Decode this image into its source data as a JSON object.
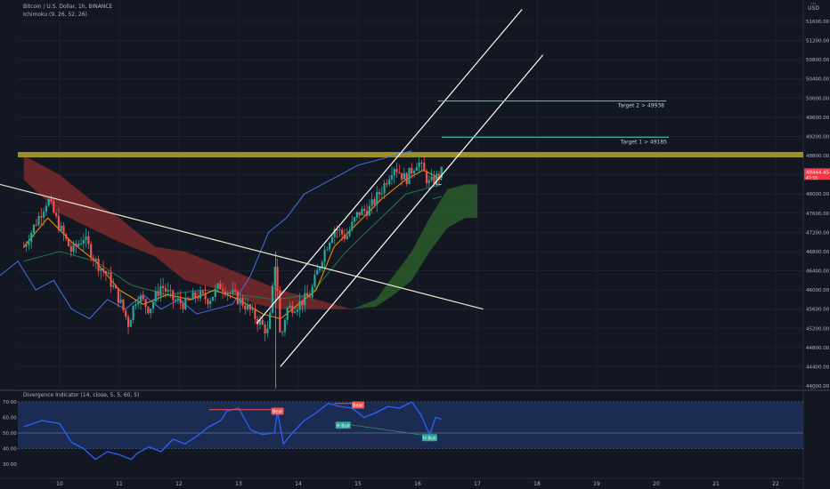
{
  "header": {
    "symbol": "Bitcoin / U.S. Dollar, 1h, BINANCE",
    "ichimoku": "Ichimoku (9, 26, 52, 26)",
    "divergence": "Divergence Indicator (14, close, 5, 5, 60, 5)",
    "currency": "USD"
  },
  "colors": {
    "background": "#131722",
    "grid": "#1e2230",
    "up_candle": "#26a69a",
    "down_candle": "#ef5350",
    "horizontal_level": "#9d9124",
    "target_lines": "#4dd0c4",
    "conversion_line": "#ff9800",
    "lagging_span": "#4372e6",
    "cloud_bearish": "#7a2a2a",
    "cloud_bullish": "#2a5c2a",
    "base_line": "#1f7a48",
    "oscillator": "#2962ff",
    "osc_band": "#1c2b52",
    "price_label": "#f23645"
  },
  "chart_data": [
    {
      "type": "candlestick",
      "title": "Bitcoin / U.S. Dollar, 1h, BINANCE",
      "x_ticks": [
        "10",
        "11",
        "12",
        "13",
        "14",
        "15",
        "16",
        "17",
        "18",
        "19",
        "20",
        "21",
        "22"
      ],
      "y_ticks": [
        "44000.00",
        "44400.00",
        "44800.00",
        "45200.00",
        "45600.00",
        "46000.00",
        "46400.00",
        "46800.00",
        "47200.00",
        "47600.00",
        "48000.00",
        "48400.00",
        "48800.00",
        "49200.00",
        "49600.00",
        "50000.00",
        "50400.00",
        "50800.00",
        "51200.00",
        "51600.00"
      ],
      "ylim": [
        43950,
        51750
      ],
      "last_price": "48444.45",
      "last_price_sub": "47:55",
      "horizontal_level": 48820,
      "annotations": [
        {
          "text": "Target 2 > 49938",
          "value": 49938
        },
        {
          "text": "Target 1 > 49185",
          "value": 49185
        }
      ],
      "price_path": [
        [
          9.4,
          46900
        ],
        [
          9.6,
          47400
        ],
        [
          9.8,
          47900
        ],
        [
          10.0,
          47300
        ],
        [
          10.2,
          46800
        ],
        [
          10.4,
          47100
        ],
        [
          10.6,
          46600
        ],
        [
          10.8,
          46300
        ],
        [
          11.0,
          45800
        ],
        [
          11.15,
          45300
        ],
        [
          11.3,
          45900
        ],
        [
          11.5,
          45600
        ],
        [
          11.7,
          46100
        ],
        [
          11.9,
          45800
        ],
        [
          12.1,
          45700
        ],
        [
          12.3,
          45900
        ],
        [
          12.5,
          45800
        ],
        [
          12.7,
          46100
        ],
        [
          12.9,
          45900
        ],
        [
          13.1,
          45700
        ],
        [
          13.3,
          45400
        ],
        [
          13.5,
          45100
        ],
        [
          13.62,
          46700
        ],
        [
          13.7,
          44900
        ],
        [
          13.8,
          45600
        ],
        [
          14.0,
          45700
        ],
        [
          14.2,
          45900
        ],
        [
          14.4,
          46700
        ],
        [
          14.6,
          47300
        ],
        [
          14.8,
          47100
        ],
        [
          15.0,
          47600
        ],
        [
          15.2,
          47700
        ],
        [
          15.4,
          48100
        ],
        [
          15.6,
          48600
        ],
        [
          15.8,
          48300
        ],
        [
          16.0,
          48700
        ],
        [
          16.2,
          48200
        ],
        [
          16.4,
          48450
        ]
      ],
      "conversion_line": [
        [
          9.4,
          46900
        ],
        [
          9.8,
          47500
        ],
        [
          10.2,
          47000
        ],
        [
          10.6,
          46600
        ],
        [
          11.0,
          46000
        ],
        [
          11.4,
          45700
        ],
        [
          11.8,
          45900
        ],
        [
          12.2,
          45800
        ],
        [
          12.6,
          46000
        ],
        [
          13.0,
          45800
        ],
        [
          13.4,
          45500
        ],
        [
          13.7,
          45400
        ],
        [
          14.0,
          45700
        ],
        [
          14.3,
          46000
        ],
        [
          14.6,
          46900
        ],
        [
          15.0,
          47400
        ],
        [
          15.4,
          47900
        ],
        [
          15.8,
          48300
        ],
        [
          16.1,
          48500
        ],
        [
          16.4,
          48300
        ]
      ],
      "base_line": [
        [
          9.4,
          46600
        ],
        [
          10.0,
          46800
        ],
        [
          10.6,
          46600
        ],
        [
          11.2,
          46100
        ],
        [
          11.8,
          45900
        ],
        [
          12.4,
          46000
        ],
        [
          13.0,
          45900
        ],
        [
          13.6,
          45800
        ],
        [
          14.2,
          45900
        ],
        [
          14.8,
          46800
        ],
        [
          15.3,
          47400
        ],
        [
          15.8,
          48000
        ],
        [
          16.4,
          48200
        ]
      ],
      "lagging_span": [
        [
          9.0,
          46300
        ],
        [
          9.3,
          46600
        ],
        [
          9.6,
          46000
        ],
        [
          9.9,
          46200
        ],
        [
          10.2,
          45600
        ],
        [
          10.5,
          45400
        ],
        [
          10.8,
          45800
        ],
        [
          11.1,
          45600
        ],
        [
          11.4,
          45900
        ],
        [
          11.7,
          45600
        ],
        [
          12.0,
          45800
        ],
        [
          12.3,
          45500
        ],
        [
          12.6,
          45600
        ],
        [
          12.9,
          45700
        ],
        [
          13.2,
          46300
        ],
        [
          13.5,
          47200
        ],
        [
          13.8,
          47500
        ],
        [
          14.1,
          48000
        ],
        [
          14.4,
          48200
        ],
        [
          14.7,
          48400
        ],
        [
          15.0,
          48600
        ],
        [
          15.3,
          48700
        ],
        [
          15.6,
          48800
        ],
        [
          15.9,
          48900
        ]
      ],
      "cloud_bearish": [
        [
          9.4,
          48800,
          48300
        ],
        [
          10.0,
          48400,
          47600
        ],
        [
          10.5,
          47900,
          47300
        ],
        [
          11.0,
          47500,
          47000
        ],
        [
          11.6,
          46900,
          46700
        ],
        [
          12.1,
          46800,
          46200
        ],
        [
          12.7,
          46500,
          46000
        ],
        [
          13.3,
          46200,
          45700
        ],
        [
          13.7,
          46000,
          45600
        ],
        [
          14.3,
          45800,
          45600
        ],
        [
          14.9,
          45600,
          45600
        ]
      ],
      "cloud_bullish": [
        [
          14.9,
          45600,
          45600
        ],
        [
          15.3,
          45800,
          45650
        ],
        [
          15.6,
          46300,
          45900
        ],
        [
          15.9,
          46800,
          46200
        ],
        [
          16.2,
          47500,
          46800
        ],
        [
          16.5,
          48100,
          47300
        ],
        [
          16.8,
          48200,
          47500
        ],
        [
          17.0,
          48200,
          47500
        ]
      ],
      "trend_lines": [
        {
          "name": "descending-trendline",
          "from": [
            9.0,
            48200
          ],
          "to": [
            17.1,
            45600
          ]
        },
        {
          "name": "channel-upper",
          "from": [
            13.3,
            45300
          ],
          "to": [
            17.75,
            51850
          ]
        },
        {
          "name": "channel-lower",
          "from": [
            13.7,
            44400
          ],
          "to": [
            18.1,
            50900
          ]
        }
      ]
    },
    {
      "type": "line",
      "title": "Divergence Indicator (14, close, 5, 5, 60, 5)",
      "y_ticks": [
        "70.00",
        "60.00",
        "50.00",
        "40.00",
        "30.00"
      ],
      "ylim": [
        25,
        73
      ],
      "band": [
        40,
        70
      ],
      "midline": 50,
      "series": [
        {
          "values": [
            [
              9.4,
              54
            ],
            [
              9.7,
              58
            ],
            [
              10.0,
              56
            ],
            [
              10.2,
              44
            ],
            [
              10.4,
              40
            ],
            [
              10.6,
              33
            ],
            [
              10.8,
              38
            ],
            [
              11.0,
              36
            ],
            [
              11.2,
              33
            ],
            [
              11.3,
              37
            ],
            [
              11.5,
              41
            ],
            [
              11.7,
              38
            ],
            [
              11.9,
              46
            ],
            [
              12.1,
              43
            ],
            [
              12.3,
              48
            ],
            [
              12.5,
              54
            ],
            [
              12.7,
              58
            ],
            [
              12.8,
              64
            ],
            [
              13.0,
              66
            ],
            [
              13.2,
              52
            ],
            [
              13.4,
              49
            ],
            [
              13.6,
              50
            ],
            [
              13.65,
              64
            ],
            [
              13.75,
              43
            ],
            [
              13.9,
              50
            ],
            [
              14.1,
              58
            ],
            [
              14.3,
              63
            ],
            [
              14.5,
              69
            ],
            [
              14.7,
              67
            ],
            [
              14.9,
              66
            ],
            [
              15.1,
              60
            ],
            [
              15.3,
              63
            ],
            [
              15.5,
              67
            ],
            [
              15.7,
              66
            ],
            [
              15.9,
              70
            ],
            [
              16.05,
              62
            ],
            [
              16.2,
              49
            ],
            [
              16.3,
              60
            ],
            [
              16.4,
              59
            ]
          ]
        }
      ],
      "labels": [
        {
          "text": "Bear",
          "x": 13.65,
          "y": 64
        },
        {
          "text": "Bear",
          "x": 15.0,
          "y": 68
        },
        {
          "text": "H Bull",
          "x": 14.75,
          "y": 55
        },
        {
          "text": "H Bull",
          "x": 16.2,
          "y": 47
        }
      ]
    }
  ]
}
